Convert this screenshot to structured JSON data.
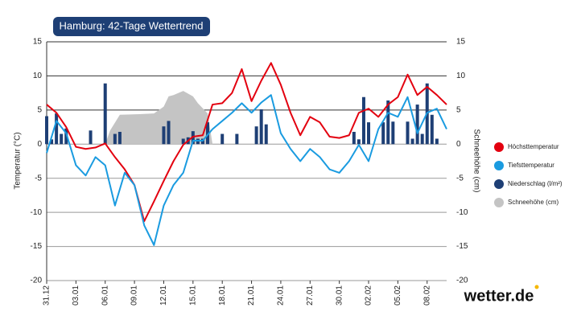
{
  "chart_data": {
    "type": "combo",
    "title": "Hamburg: 42-Tage Wettertrend",
    "ylabel": "Temperatur (°C)",
    "y2label": "Schneehöhe (cm)",
    "logo": "wetter.de",
    "xlim": [
      0,
      41
    ],
    "ylim": [
      -20,
      15
    ],
    "y2lim": [
      -20,
      15
    ],
    "yticks": [
      -20,
      -15,
      -10,
      -5,
      0,
      5,
      10,
      15
    ],
    "y2ticks": [
      -20,
      -15,
      -10,
      -5,
      0,
      5,
      10,
      15
    ],
    "xticks": [
      {
        "value": 0,
        "label": "31.12"
      },
      {
        "value": 3,
        "label": "03.01"
      },
      {
        "value": 6,
        "label": "06.01"
      },
      {
        "value": 9,
        "label": "09.01"
      },
      {
        "value": 12,
        "label": "12.01"
      },
      {
        "value": 15,
        "label": "15.01"
      },
      {
        "value": 18,
        "label": "18.01"
      },
      {
        "value": 21,
        "label": "21.01"
      },
      {
        "value": 24,
        "label": "24.01"
      },
      {
        "value": 27,
        "label": "27.01"
      },
      {
        "value": 30,
        "label": "30.01"
      },
      {
        "value": 33,
        "label": "02.02"
      },
      {
        "value": 36,
        "label": "05.02"
      },
      {
        "value": 39,
        "label": "08.02"
      }
    ],
    "grid": true,
    "series": [
      {
        "name": "Schneehöhe (cm)",
        "type": "area",
        "axis": "y2",
        "color": "#c4c4c4",
        "x": [
          6,
          6.5,
          7.5,
          9.5,
          11,
          12,
          12.5,
          13,
          14,
          15,
          15.5,
          16.5,
          17
        ],
        "values": [
          0,
          2,
          4.3,
          4.4,
          4.5,
          5.5,
          7,
          7.2,
          7.8,
          7,
          6,
          4.5,
          0
        ]
      },
      {
        "name": "Niederschlag (l/m²)",
        "type": "bar",
        "axis": "y2",
        "color": "#1e3f75",
        "x": [
          0,
          0.5,
          1,
          1.5,
          2,
          4.5,
          6,
          7,
          7.5,
          12,
          12.5,
          14,
          14.5,
          15,
          15.5,
          16,
          16.5,
          18,
          19.5,
          21.5,
          22,
          22.5,
          31.5,
          32,
          32.5,
          33,
          34.5,
          35,
          35.5,
          37,
          37.5,
          38,
          38.5,
          39,
          39.5,
          40
        ],
        "values": [
          4.1,
          0.7,
          4.5,
          1.5,
          2.3,
          2,
          8.9,
          1.5,
          1.8,
          2.6,
          3.4,
          0.8,
          1,
          1.9,
          0.8,
          0.8,
          3.2,
          1.5,
          1.5,
          2.6,
          5.1,
          2.9,
          1.8,
          0.7,
          6.9,
          3.2,
          3.2,
          6.4,
          3.3,
          3.3,
          0.8,
          5.8,
          1.5,
          8.9,
          4.3,
          0.8
        ]
      },
      {
        "name": "Höchsttemperatur",
        "type": "line",
        "color": "#e3000f",
        "x": [
          0,
          1,
          2,
          3,
          4,
          5,
          6,
          7,
          8,
          9,
          10,
          11,
          12,
          13,
          14,
          15,
          16,
          17,
          18,
          19,
          20,
          21,
          22,
          23,
          24,
          25,
          26,
          27,
          28,
          29,
          30,
          31,
          32,
          33,
          34,
          35,
          36,
          37,
          38,
          39,
          40,
          41
        ],
        "values": [
          5.8,
          4.6,
          2.5,
          -0.4,
          -0.7,
          -0.5,
          0.1,
          -1.9,
          -3.7,
          -6,
          -11.3,
          -8.4,
          -5.4,
          -2.5,
          -0.1,
          1.1,
          1.3,
          5.8,
          6,
          7.5,
          11,
          6.3,
          9.3,
          11.9,
          8.7,
          4.6,
          1.3,
          4,
          3.2,
          1.1,
          0.9,
          1.3,
          4.6,
          5.2,
          4,
          5.8,
          6.9,
          10.2,
          7.2,
          8.4,
          7.2,
          5.8
        ]
      },
      {
        "name": "Tiefsttemperatur",
        "type": "line",
        "color": "#1a9be0",
        "x": [
          0,
          1,
          2,
          3,
          4,
          5,
          6,
          7,
          8,
          9,
          10,
          11,
          12,
          13,
          14,
          15,
          16,
          17,
          18,
          19,
          20,
          21,
          22,
          23,
          24,
          25,
          26,
          27,
          28,
          29,
          30,
          31,
          32,
          33,
          34,
          35,
          36,
          37,
          38,
          39,
          40,
          41
        ],
        "values": [
          -1.3,
          3.4,
          1.6,
          -3.1,
          -4.6,
          -1.9,
          -3.1,
          -9,
          -4.2,
          -6,
          -11.9,
          -14.8,
          -9,
          -6,
          -4.2,
          0.5,
          0.5,
          2.2,
          3.4,
          4.6,
          6,
          4.6,
          6.1,
          7.2,
          1.6,
          -0.7,
          -2.5,
          -0.7,
          -1.9,
          -3.7,
          -4.2,
          -2.5,
          -0.1,
          -2.5,
          2.2,
          4.6,
          4,
          6.9,
          1.6,
          4.6,
          5.2,
          2.2
        ]
      }
    ]
  }
}
